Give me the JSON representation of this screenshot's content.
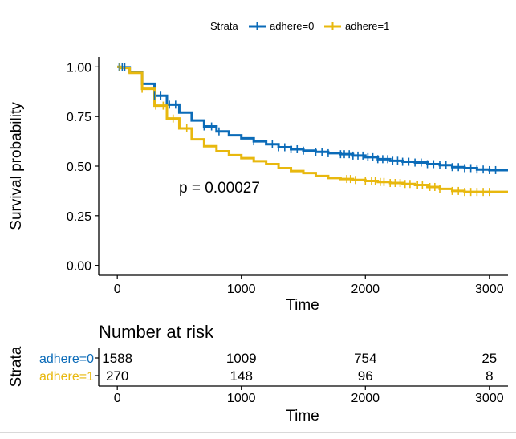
{
  "chart_data": {
    "type": "line",
    "subtype": "kaplan-meier",
    "legend": {
      "title": "Strata",
      "position": "top",
      "entries": [
        "adhere=0",
        "adhere=1"
      ]
    },
    "ylabel": "Survival probability",
    "xlabel": "Time",
    "xlim": [
      -150,
      3150
    ],
    "ylim": [
      -0.05,
      1.05
    ],
    "xticks": [
      "0",
      "1000",
      "2000",
      "3000"
    ],
    "yticks": [
      "0.00",
      "0.25",
      "0.50",
      "0.75",
      "1.00"
    ],
    "grid": false,
    "annotation": "p = 0.00027",
    "colors": {
      "adhere=0": "#0b6bb8",
      "adhere=1": "#e8b80e"
    },
    "series": [
      {
        "name": "adhere=0",
        "x": [
          0,
          30,
          100,
          200,
          300,
          400,
          500,
          600,
          700,
          800,
          900,
          1000,
          1100,
          1200,
          1300,
          1400,
          1500,
          1600,
          1700,
          1800,
          1900,
          2000,
          2100,
          2200,
          2300,
          2400,
          2500,
          2600,
          2700,
          2800,
          2900,
          3000,
          3100,
          3150
        ],
        "y": [
          1.0,
          0.998,
          0.975,
          0.915,
          0.855,
          0.81,
          0.77,
          0.73,
          0.7,
          0.675,
          0.655,
          0.64,
          0.625,
          0.61,
          0.595,
          0.585,
          0.578,
          0.572,
          0.565,
          0.56,
          0.553,
          0.545,
          0.535,
          0.527,
          0.522,
          0.518,
          0.51,
          0.505,
          0.495,
          0.49,
          0.483,
          0.48,
          0.48,
          0.48
        ],
        "censor_x": [
          15,
          40,
          60,
          300,
          350,
          420,
          470,
          700,
          760,
          820,
          1100,
          1250,
          1300,
          1350,
          1400,
          1450,
          1500,
          1600,
          1650,
          1700,
          1800,
          1830,
          1870,
          1900,
          1940,
          1980,
          2020,
          2060,
          2100,
          2140,
          2180,
          2220,
          2260,
          2300,
          2350,
          2400,
          2450,
          2500,
          2550,
          2600,
          2650,
          2700,
          2750,
          2800,
          2850,
          2900,
          2950,
          3000,
          3050
        ]
      },
      {
        "name": "adhere=1",
        "x": [
          0,
          30,
          100,
          200,
          300,
          400,
          500,
          600,
          700,
          800,
          900,
          1000,
          1100,
          1200,
          1300,
          1400,
          1500,
          1600,
          1700,
          1800,
          1900,
          2000,
          2100,
          2200,
          2300,
          2400,
          2500,
          2600,
          2700,
          2800,
          2900,
          3000,
          3100,
          3150
        ],
        "y": [
          1.0,
          0.995,
          0.97,
          0.89,
          0.805,
          0.74,
          0.69,
          0.635,
          0.6,
          0.575,
          0.555,
          0.54,
          0.525,
          0.51,
          0.49,
          0.475,
          0.465,
          0.45,
          0.44,
          0.435,
          0.43,
          0.425,
          0.42,
          0.415,
          0.41,
          0.405,
          0.395,
          0.385,
          0.375,
          0.37,
          0.37,
          0.37,
          0.37,
          0.37
        ],
        "censor_x": [
          20,
          200,
          310,
          370,
          450,
          560,
          1850,
          1880,
          1920,
          2000,
          2050,
          2080,
          2120,
          2150,
          2200,
          2240,
          2280,
          2320,
          2360,
          2420,
          2460,
          2520,
          2560,
          2600,
          2700,
          2750,
          2800,
          2850,
          2900,
          2950,
          3000
        ]
      }
    ],
    "risk_table": {
      "title": "Number at risk",
      "ylabel": "Strata",
      "xlabel": "Time",
      "times": [
        0,
        1000,
        2000,
        3000
      ],
      "rows": [
        {
          "name": "adhere=0",
          "counts": [
            "1588",
            "1009",
            "754",
            "25"
          ]
        },
        {
          "name": "adhere=1",
          "counts": [
            "270",
            "148",
            "96",
            "8"
          ]
        }
      ]
    }
  }
}
